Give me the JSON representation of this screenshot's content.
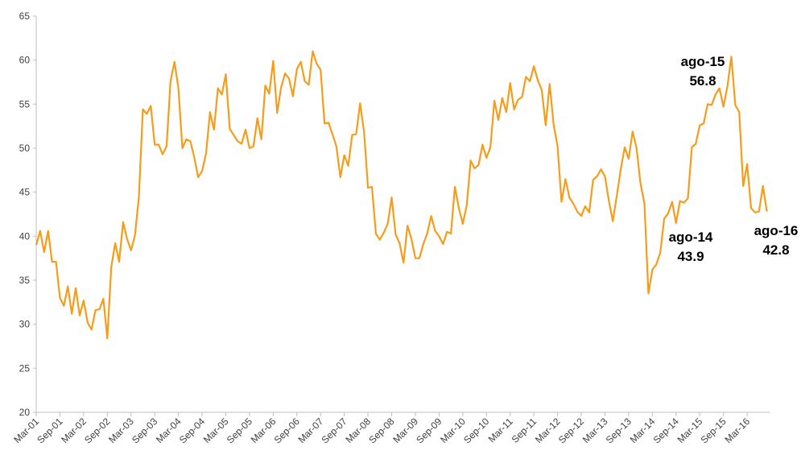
{
  "chart_data": {
    "type": "line",
    "categories": [
      "Mar-01",
      null,
      null,
      null,
      null,
      null,
      "Sep-01",
      null,
      null,
      null,
      null,
      null,
      "Mar-02",
      null,
      null,
      null,
      null,
      null,
      "Sep-02",
      null,
      null,
      null,
      null,
      null,
      "Mar-03",
      null,
      null,
      null,
      null,
      null,
      "Sep-03",
      null,
      null,
      null,
      null,
      null,
      "Mar-04",
      null,
      null,
      null,
      null,
      null,
      "Sep-04",
      null,
      null,
      null,
      null,
      null,
      "Mar-05",
      null,
      null,
      null,
      null,
      null,
      "Sep-05",
      null,
      null,
      null,
      null,
      null,
      "Mar-06",
      null,
      null,
      null,
      null,
      null,
      "Sep-06",
      null,
      null,
      null,
      null,
      null,
      "Mar-07",
      null,
      null,
      null,
      null,
      null,
      "Sep-07",
      null,
      null,
      null,
      null,
      null,
      "Mar-08",
      null,
      null,
      null,
      null,
      null,
      "Sep-08",
      null,
      null,
      null,
      null,
      null,
      "Mar-09",
      null,
      null,
      null,
      null,
      null,
      "Sep-09",
      null,
      null,
      null,
      null,
      null,
      "Mar-10",
      null,
      null,
      null,
      null,
      null,
      "Sep-10",
      null,
      null,
      null,
      null,
      null,
      "Mar-11",
      null,
      null,
      null,
      null,
      null,
      "Sep-11",
      null,
      null,
      null,
      null,
      null,
      "Mar-12",
      null,
      null,
      null,
      null,
      null,
      "Sep-12",
      null,
      null,
      null,
      null,
      null,
      "Mar-13",
      null,
      null,
      null,
      null,
      null,
      "Sep-13",
      null,
      null,
      null,
      null,
      null,
      "Mar-14",
      null,
      null,
      null,
      null,
      null,
      "Sep-14",
      null,
      null,
      null,
      null,
      null,
      "Mar-15",
      null,
      null,
      null,
      null,
      null,
      "Sep-15",
      null,
      null,
      null,
      null,
      null,
      "Mar-16",
      null,
      null,
      null,
      null,
      null
    ],
    "values": [
      39,
      40.6,
      38.2,
      40.6,
      37.1,
      37.1,
      33,
      32.1,
      34.3,
      31.2,
      34.1,
      31,
      32.7,
      30.2,
      29.4,
      31.6,
      31.7,
      32.9,
      28.4,
      36.5,
      39.2,
      37.1,
      41.6,
      39.7,
      38.4,
      40.1,
      44.5,
      54.4,
      53.9,
      54.8,
      50.4,
      50.4,
      49.3,
      50.2,
      57.6,
      59.8,
      56.8,
      50,
      51,
      50.8,
      49,
      46.7,
      47.4,
      49.4,
      54.1,
      52.1,
      56.8,
      56.1,
      58.4,
      52.2,
      51.5,
      50.8,
      50.5,
      52.1,
      50,
      50.2,
      53.4,
      51,
      57.1,
      56.2,
      59.9,
      54,
      56.9,
      58.5,
      57.9,
      55.9,
      59,
      59.8,
      57.6,
      57.2,
      61,
      59.6,
      58.9,
      52.8,
      52.9,
      51.6,
      50.2,
      46.7,
      49.2,
      48,
      51.5,
      51.6,
      55.1,
      51.9,
      45.5,
      45.6,
      40.3,
      39.6,
      40.4,
      41.4,
      44.4,
      40.2,
      39.2,
      37,
      41.2,
      39.7,
      37.5,
      37.5,
      39.1,
      40.3,
      42.3,
      40.6,
      40,
      39.1,
      40.5,
      40.3,
      45.6,
      43.2,
      41.4,
      43.5,
      48.6,
      47.7,
      48.1,
      50.4,
      48.9,
      50.1,
      55.4,
      53.2,
      55.7,
      54.1,
      57.4,
      54.4,
      55.5,
      55.8,
      58.1,
      57.6,
      59.3,
      57.7,
      56.6,
      52.6,
      57.3,
      52.7,
      50.2,
      43.9,
      46.5,
      44.4,
      43.7,
      42.8,
      42.3,
      43.4,
      42.7,
      46.4,
      46.8,
      47.6,
      46.8,
      44,
      41.7,
      44.6,
      47.6,
      50.1,
      48.8,
      51.9,
      50,
      46,
      43.7,
      33.5,
      36.2,
      36.8,
      38.1,
      42,
      42.6,
      43.9,
      41.5,
      44,
      43.8,
      44.3,
      50.1,
      50.5,
      52.6,
      52.8,
      55,
      54.9,
      56.1,
      56.8,
      54.7,
      57,
      60.4,
      54.9,
      54.1,
      45.7,
      48.2,
      43.2,
      42.7,
      42.8,
      45.7,
      42.8
    ],
    "color": "#f59d1b",
    "ylim": [
      20,
      65
    ],
    "yticks": [
      20,
      25,
      30,
      35,
      40,
      45,
      50,
      55,
      60,
      65
    ],
    "grid": false,
    "annotations": [
      {
        "text": "ago-14",
        "value": 43.9
      },
      {
        "text": "ago-15",
        "value": 56.8
      },
      {
        "text": "ago-16",
        "value": 42.8
      }
    ]
  }
}
